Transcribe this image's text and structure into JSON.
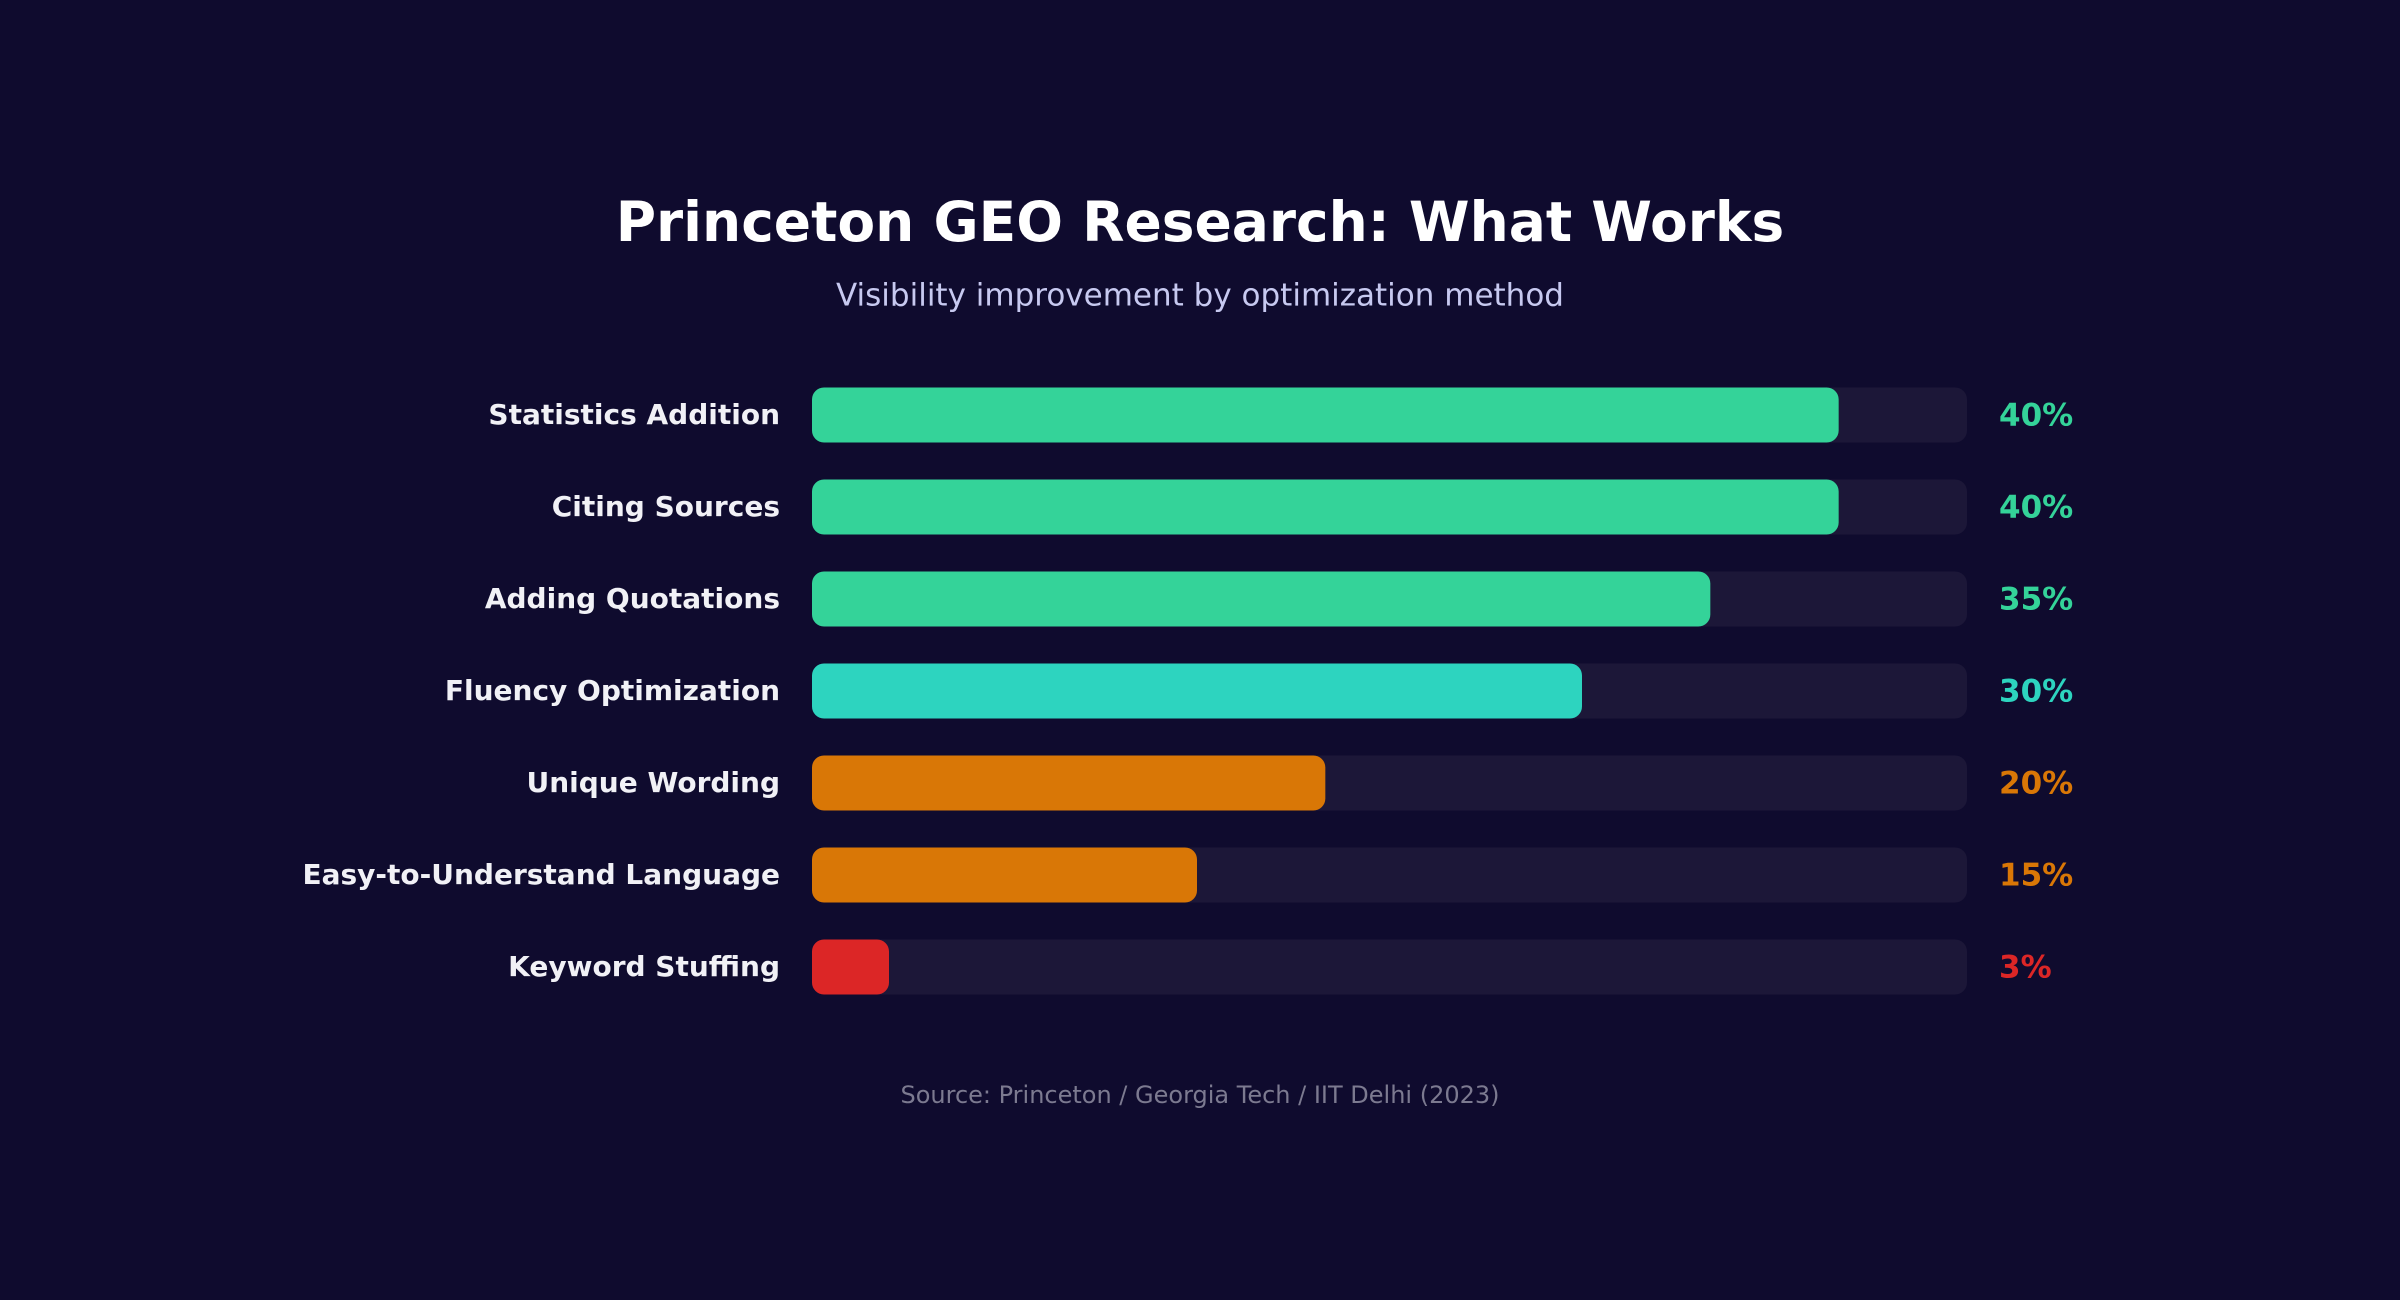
{
  "chart_data": {
    "type": "hbar",
    "title": "Princeton GEO Research: What Works",
    "subtitle": "Visibility improvement by optimization method",
    "source": "Source: Princeton / Georgia Tech / IIT Delhi (2023)",
    "categories": [
      "Statistics Addition",
      "Citing Sources",
      "Adding Quotations",
      "Fluency Optimization",
      "Unique Wording",
      "Easy-to-Understand Language",
      "Keyword Stuffing"
    ],
    "values": [
      40,
      40,
      35,
      30,
      20,
      15,
      3
    ],
    "value_labels": [
      "40%",
      "40%",
      "35%",
      "30%",
      "20%",
      "15%",
      "3%"
    ],
    "colors": [
      "#34d399",
      "#34d399",
      "#34d399",
      "#2dd4bf",
      "#d97706",
      "#d97706",
      "#dc2626"
    ],
    "xlim": [
      0,
      45
    ]
  }
}
